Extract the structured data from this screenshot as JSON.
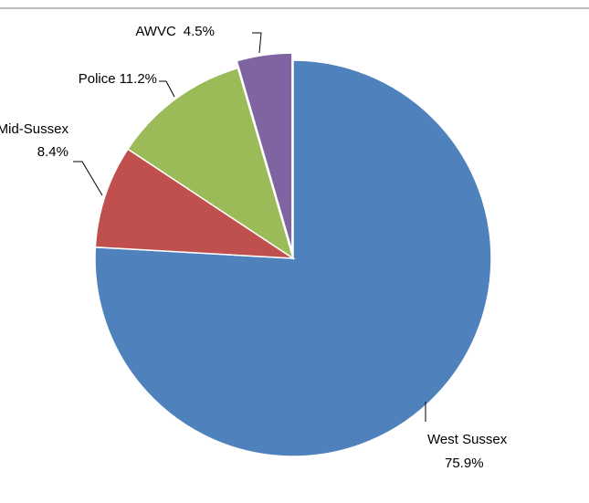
{
  "chart_data": {
    "type": "pie",
    "title": "",
    "legend": "none",
    "slices": [
      {
        "name": "West Sussex",
        "value": 75.9,
        "label_text": "75.9%",
        "color": "#4F81BD"
      },
      {
        "name": "Mid-Sussex",
        "value": 8.4,
        "label_text": "8.4%",
        "color": "#C0504D"
      },
      {
        "name": "Police",
        "value": 11.2,
        "label_text": "11.2%",
        "color": "#9BBB59"
      },
      {
        "name": "AWVC",
        "value": 4.5,
        "label_text": "4.5%",
        "color": "#8064A2",
        "exploded": true
      }
    ],
    "start_angle_deg": 0,
    "direction": "clockwise"
  },
  "frame_line_color": "#A6A6A6"
}
